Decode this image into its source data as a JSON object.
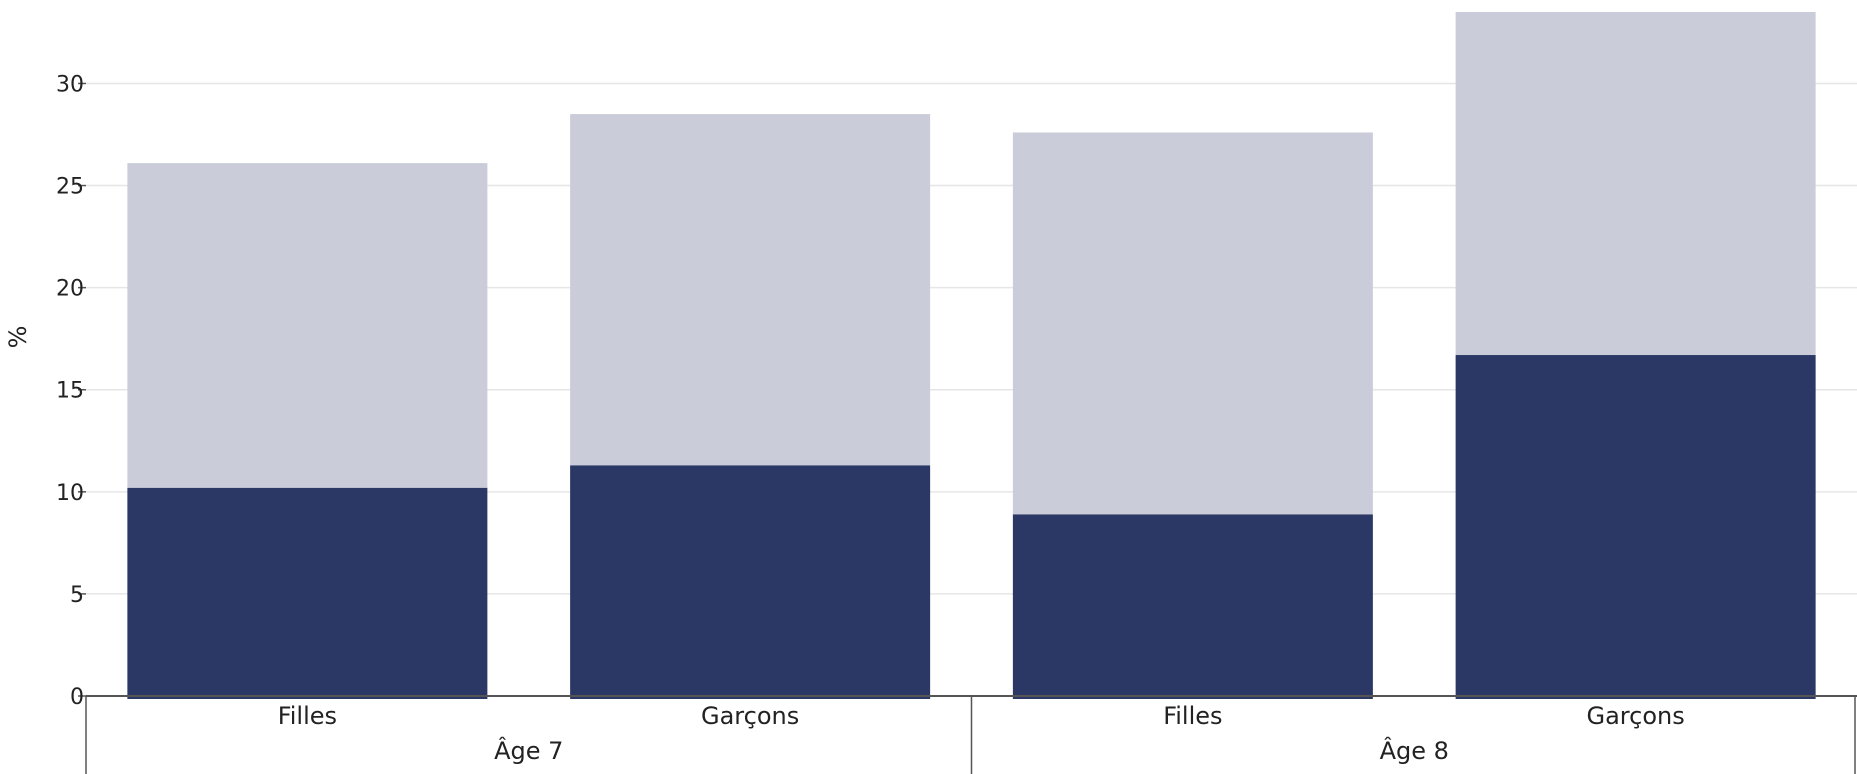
{
  "chart_data": {
    "type": "bar",
    "stacked": true,
    "ylabel": "%",
    "ylim": [
      0,
      33.5
    ],
    "yticks": [
      0,
      5,
      10,
      15,
      20,
      25,
      30
    ],
    "grid": true,
    "groups": [
      {
        "label": "Âge 7",
        "categories": [
          "Filles",
          "Garçons"
        ]
      },
      {
        "label": "Âge 8",
        "categories": [
          "Filles",
          "Garçons"
        ]
      }
    ],
    "categories": [
      "Filles",
      "Garçons",
      "Filles",
      "Garçons"
    ],
    "series": [
      {
        "values": [
          10.2,
          11.3,
          8.9,
          16.7
        ],
        "color": "#2b3764"
      },
      {
        "values": [
          15.9,
          17.2,
          18.7,
          16.8
        ],
        "color": "#cacdd9"
      }
    ]
  }
}
